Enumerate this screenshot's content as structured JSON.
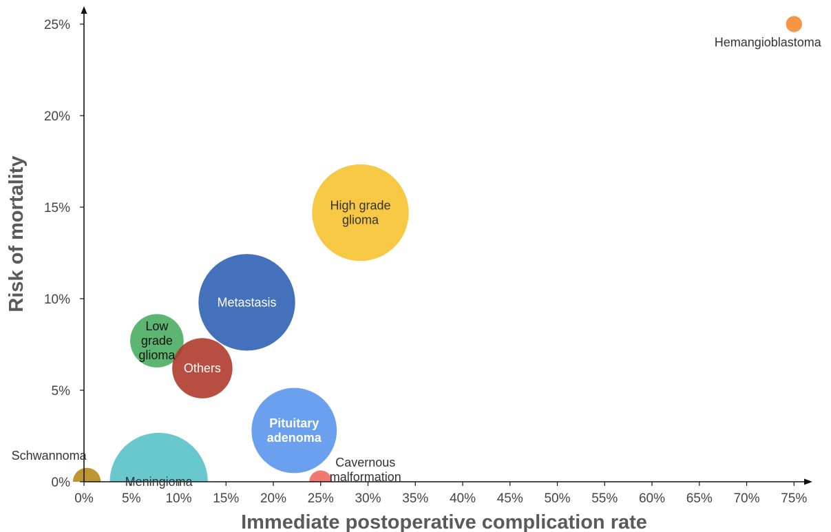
{
  "chart_data": {
    "type": "scatter",
    "title": "",
    "xlabel": "Immediate postoperative complication rate",
    "ylabel": "Risk of mortality",
    "xlim": [
      0,
      77
    ],
    "ylim": [
      0,
      26
    ],
    "x_ticks": [
      "0%",
      "5%",
      "10%",
      "15%",
      "20%",
      "25%",
      "30%",
      "35%",
      "40%",
      "45%",
      "50%",
      "55%",
      "60%",
      "65%",
      "70%",
      "75%"
    ],
    "y_ticks": [
      "0%",
      "5%",
      "10%",
      "15%",
      "20%",
      "25%"
    ],
    "grid": false,
    "legend": "none",
    "series": [
      {
        "label": "Hemangioblastoma",
        "x": 75.0,
        "y": 25.0,
        "size": 1,
        "color": "#f58a2e",
        "label_position": "below",
        "label_color": "#333333"
      },
      {
        "label": "High grade glioma",
        "x": 29.2,
        "y": 14.7,
        "size": 36,
        "color": "#f6c22f",
        "label_position": "center",
        "label_color": "#333333"
      },
      {
        "label": "Metastasis",
        "x": 17.2,
        "y": 9.8,
        "size": 36,
        "color": "#2f62b5",
        "label_position": "center",
        "label_color": "#ffffff"
      },
      {
        "label": "Low grade glioma",
        "x": 7.7,
        "y": 7.7,
        "size": 11,
        "color": "#4aae62",
        "label_position": "center",
        "label_color": "#111111"
      },
      {
        "label": "Others",
        "x": 12.5,
        "y": 6.2,
        "size": 14,
        "color": "#b03a2e",
        "label_position": "center",
        "label_color": "#ffffff"
      },
      {
        "label": "Pituitary adenoma",
        "x": 22.2,
        "y": 2.8,
        "size": 28,
        "color": "#5b96ec",
        "label_position": "center",
        "label_color": "#ffffff"
      },
      {
        "label": "Meningioma",
        "x": 7.9,
        "y": 0.0,
        "size": 37,
        "color": "#59c2c9",
        "label_position": "center",
        "label_color": "#333333"
      },
      {
        "label": "Schwannoma",
        "x": 0.3,
        "y": 0.0,
        "size": 3,
        "color": "#b78a1a",
        "label_position": "above-left",
        "label_color": "#333333"
      },
      {
        "label": "Cavernous malformation",
        "x": 25.0,
        "y": 0.0,
        "size": 2,
        "color": "#ec6a5e",
        "label_position": "above-right",
        "label_color": "#333333"
      }
    ]
  }
}
